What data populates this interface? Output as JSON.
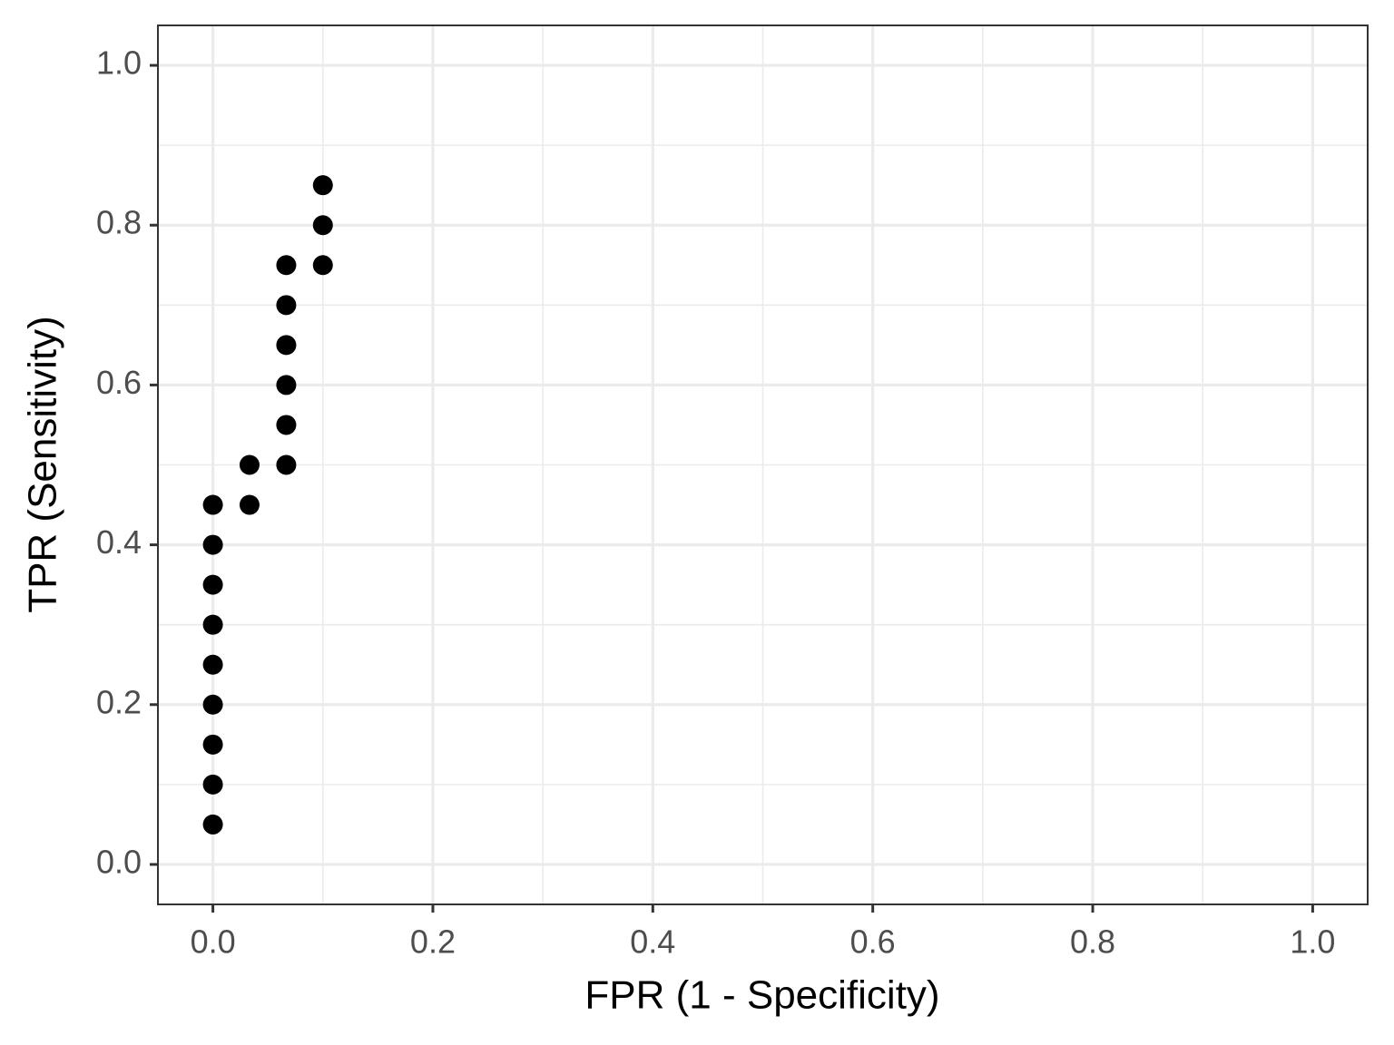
{
  "chart_data": {
    "type": "scatter",
    "x_label": "FPR (1 - Specificity)",
    "y_label": "TPR (Sensitivity)",
    "x": [
      0,
      0,
      0,
      0,
      0,
      0,
      0,
      0,
      0,
      0.0333,
      0.0333,
      0.0667,
      0.0667,
      0.0667,
      0.0667,
      0.0667,
      0.0667,
      0.1,
      0.1,
      0.1
    ],
    "y": [
      0.05,
      0.1,
      0.15,
      0.2,
      0.25,
      0.3,
      0.35,
      0.4,
      0.45,
      0.45,
      0.5,
      0.5,
      0.55,
      0.6,
      0.65,
      0.7,
      0.75,
      0.75,
      0.8,
      0.85
    ],
    "color": "#000000",
    "xlim": [
      -0.05,
      1.05
    ],
    "ylim": [
      -0.05,
      1.05
    ],
    "xticks": [
      {
        "value": 0,
        "label": "0.0"
      },
      0.2,
      0.4,
      0.6,
      0.8,
      {
        "value": 1,
        "label": "1.0"
      }
    ],
    "yticks": [
      {
        "value": 0,
        "label": "0.0"
      },
      0.2,
      0.4,
      0.6,
      0.8,
      {
        "value": 1,
        "label": "1.0"
      }
    ],
    "minor_xticks": [
      0.1,
      0.3,
      0.5,
      0.7,
      0.9
    ],
    "minor_yticks": [
      0.1,
      0.3,
      0.5,
      0.7,
      0.9
    ],
    "grid": true
  }
}
